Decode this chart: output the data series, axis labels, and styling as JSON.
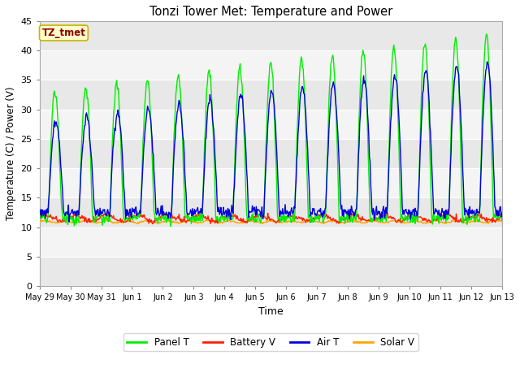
{
  "title": "Tonzi Tower Met: Temperature and Power",
  "xlabel": "Time",
  "ylabel": "Temperature (C) / Power (V)",
  "annotation": "TZ_tmet",
  "annotation_color": "#8B0000",
  "annotation_bg": "#FFFFCC",
  "annotation_edge": "#C8B400",
  "ylim": [
    0,
    45
  ],
  "yticks": [
    0,
    5,
    10,
    15,
    20,
    25,
    30,
    35,
    40,
    45
  ],
  "band_colors": [
    "#E8E8E8",
    "#F4F4F4"
  ],
  "grid_color": "#FFFFFF",
  "colors": {
    "panel_t": "#00EE00",
    "battery_v": "#FF2000",
    "air_t": "#0000DD",
    "solar_v": "#FFA500"
  },
  "legend_labels": [
    "Panel T",
    "Battery V",
    "Air T",
    "Solar V"
  ],
  "x_tick_labels": [
    "May 29",
    "May 30",
    "May 31",
    "Jun 1",
    "Jun 2",
    "Jun 3",
    "Jun 4",
    "Jun 5",
    "Jun 6",
    "Jun 7",
    "Jun 8",
    "Jun 9",
    "Jun 10",
    "Jun 11",
    "Jun 12",
    "Jun 13"
  ],
  "xlim": [
    0,
    15
  ],
  "num_days": 15
}
